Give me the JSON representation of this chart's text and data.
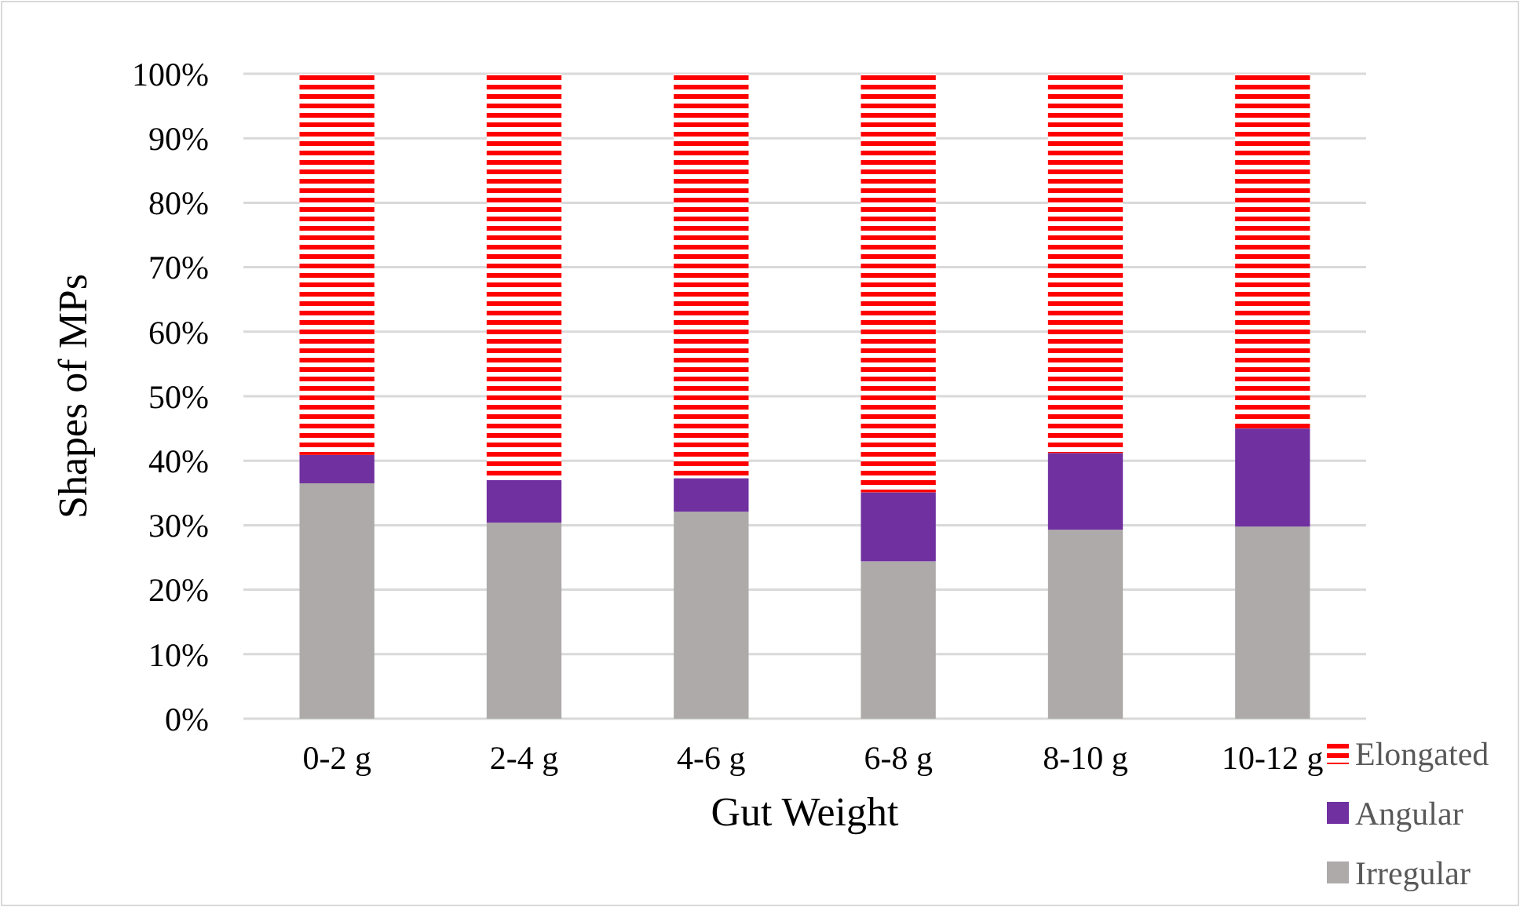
{
  "chart_data": {
    "type": "bar",
    "stacked": true,
    "xlabel": "Gut Weight",
    "ylabel": "Shapes of MPs",
    "categories": [
      "0-2 g",
      "2-4 g",
      "4-6 g",
      "6-8 g",
      "8-10 g",
      "10-12 g"
    ],
    "series": [
      {
        "name": "Irregular",
        "color": "#aeaaaa",
        "values": [
          36.5,
          30.4,
          32.1,
          24.4,
          29.3,
          29.8
        ]
      },
      {
        "name": "Angular",
        "color": "#7030a0",
        "values": [
          4.4,
          6.6,
          5.2,
          10.7,
          11.9,
          15.2
        ]
      },
      {
        "name": "Elongated",
        "color": "#ff0000",
        "values": [
          59.1,
          63.0,
          62.7,
          64.9,
          58.8,
          55.0
        ]
      }
    ],
    "ylim": [
      0,
      100
    ],
    "yticks": [
      {
        "value": 0,
        "label": "0%"
      },
      {
        "value": 10,
        "label": "10%"
      },
      {
        "value": 20,
        "label": "20%"
      },
      {
        "value": 30,
        "label": "30%"
      },
      {
        "value": 40,
        "label": "40%"
      },
      {
        "value": 50,
        "label": "50%"
      },
      {
        "value": 60,
        "label": "60%"
      },
      {
        "value": 70,
        "label": "70%"
      },
      {
        "value": 80,
        "label": "80%"
      },
      {
        "value": 90,
        "label": "90%"
      },
      {
        "value": 100,
        "label": "100%"
      }
    ],
    "grid": "y",
    "legend": "bottom right"
  }
}
